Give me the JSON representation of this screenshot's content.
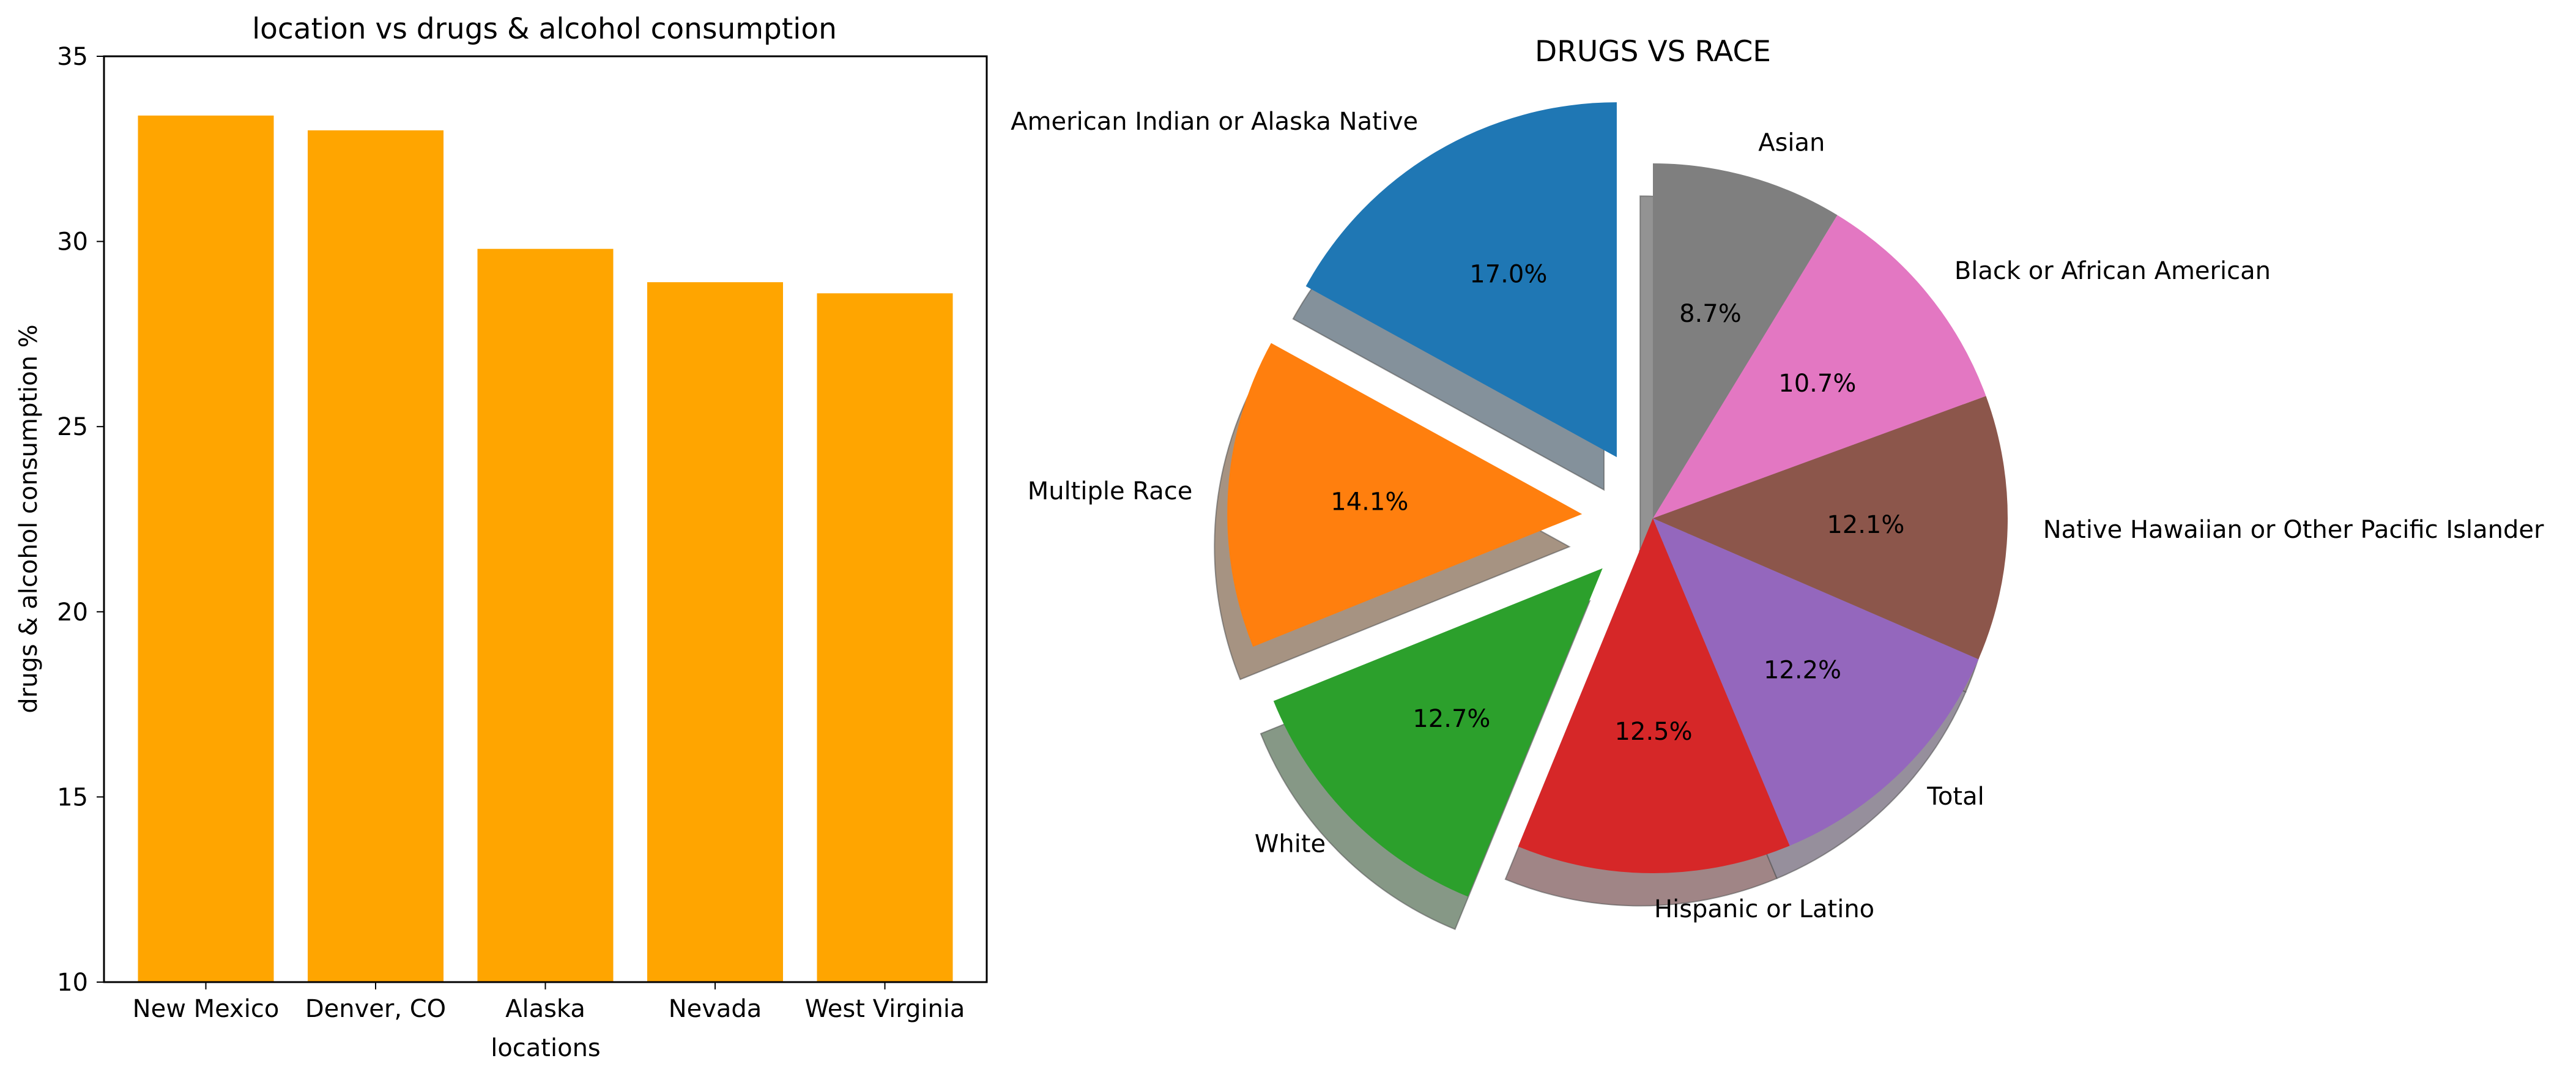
{
  "chart_data": [
    {
      "type": "bar",
      "title": "location vs drugs & alcohol consumption",
      "xlabel": "locations",
      "ylabel": "drugs & alcohol consumption %",
      "categories": [
        "New Mexico",
        "Denver, CO",
        "Alaska",
        "Nevada",
        "West Virginia"
      ],
      "values": [
        33.4,
        33.0,
        29.8,
        28.9,
        28.6
      ],
      "ylim": [
        10,
        35
      ],
      "yticks": [
        10,
        15,
        20,
        25,
        30,
        35
      ],
      "color": "#ffa500",
      "grid": false
    },
    {
      "type": "pie",
      "title": "DRUGS VS RACE",
      "shadow": true,
      "slices": [
        {
          "label": "American Indian or Alaska Native",
          "value": 17.0,
          "pct_text": "17.0%",
          "color": "#1f77b4",
          "explode": true
        },
        {
          "label": "Multiple Race",
          "value": 14.1,
          "pct_text": "14.1%",
          "color": "#ff7f0e",
          "explode": true
        },
        {
          "label": "White",
          "value": 12.7,
          "pct_text": "12.7%",
          "color": "#2ca02c",
          "explode": true
        },
        {
          "label": "Hispanic or Latino",
          "value": 12.5,
          "pct_text": "12.5%",
          "color": "#d62728",
          "explode": false
        },
        {
          "label": "Total",
          "value": 12.2,
          "pct_text": "12.2%",
          "color": "#9467bd",
          "explode": false
        },
        {
          "label": "Native Hawaiian or Other Pacific Islander",
          "value": 12.1,
          "pct_text": "12.1%",
          "color": "#8c564b",
          "explode": false
        },
        {
          "label": "Black or African American",
          "value": 10.7,
          "pct_text": "10.7%",
          "color": "#e377c2",
          "explode": false
        },
        {
          "label": "Asian",
          "value": 8.7,
          "pct_text": "8.7%",
          "color": "#7f7f7f",
          "explode": false
        }
      ]
    }
  ]
}
